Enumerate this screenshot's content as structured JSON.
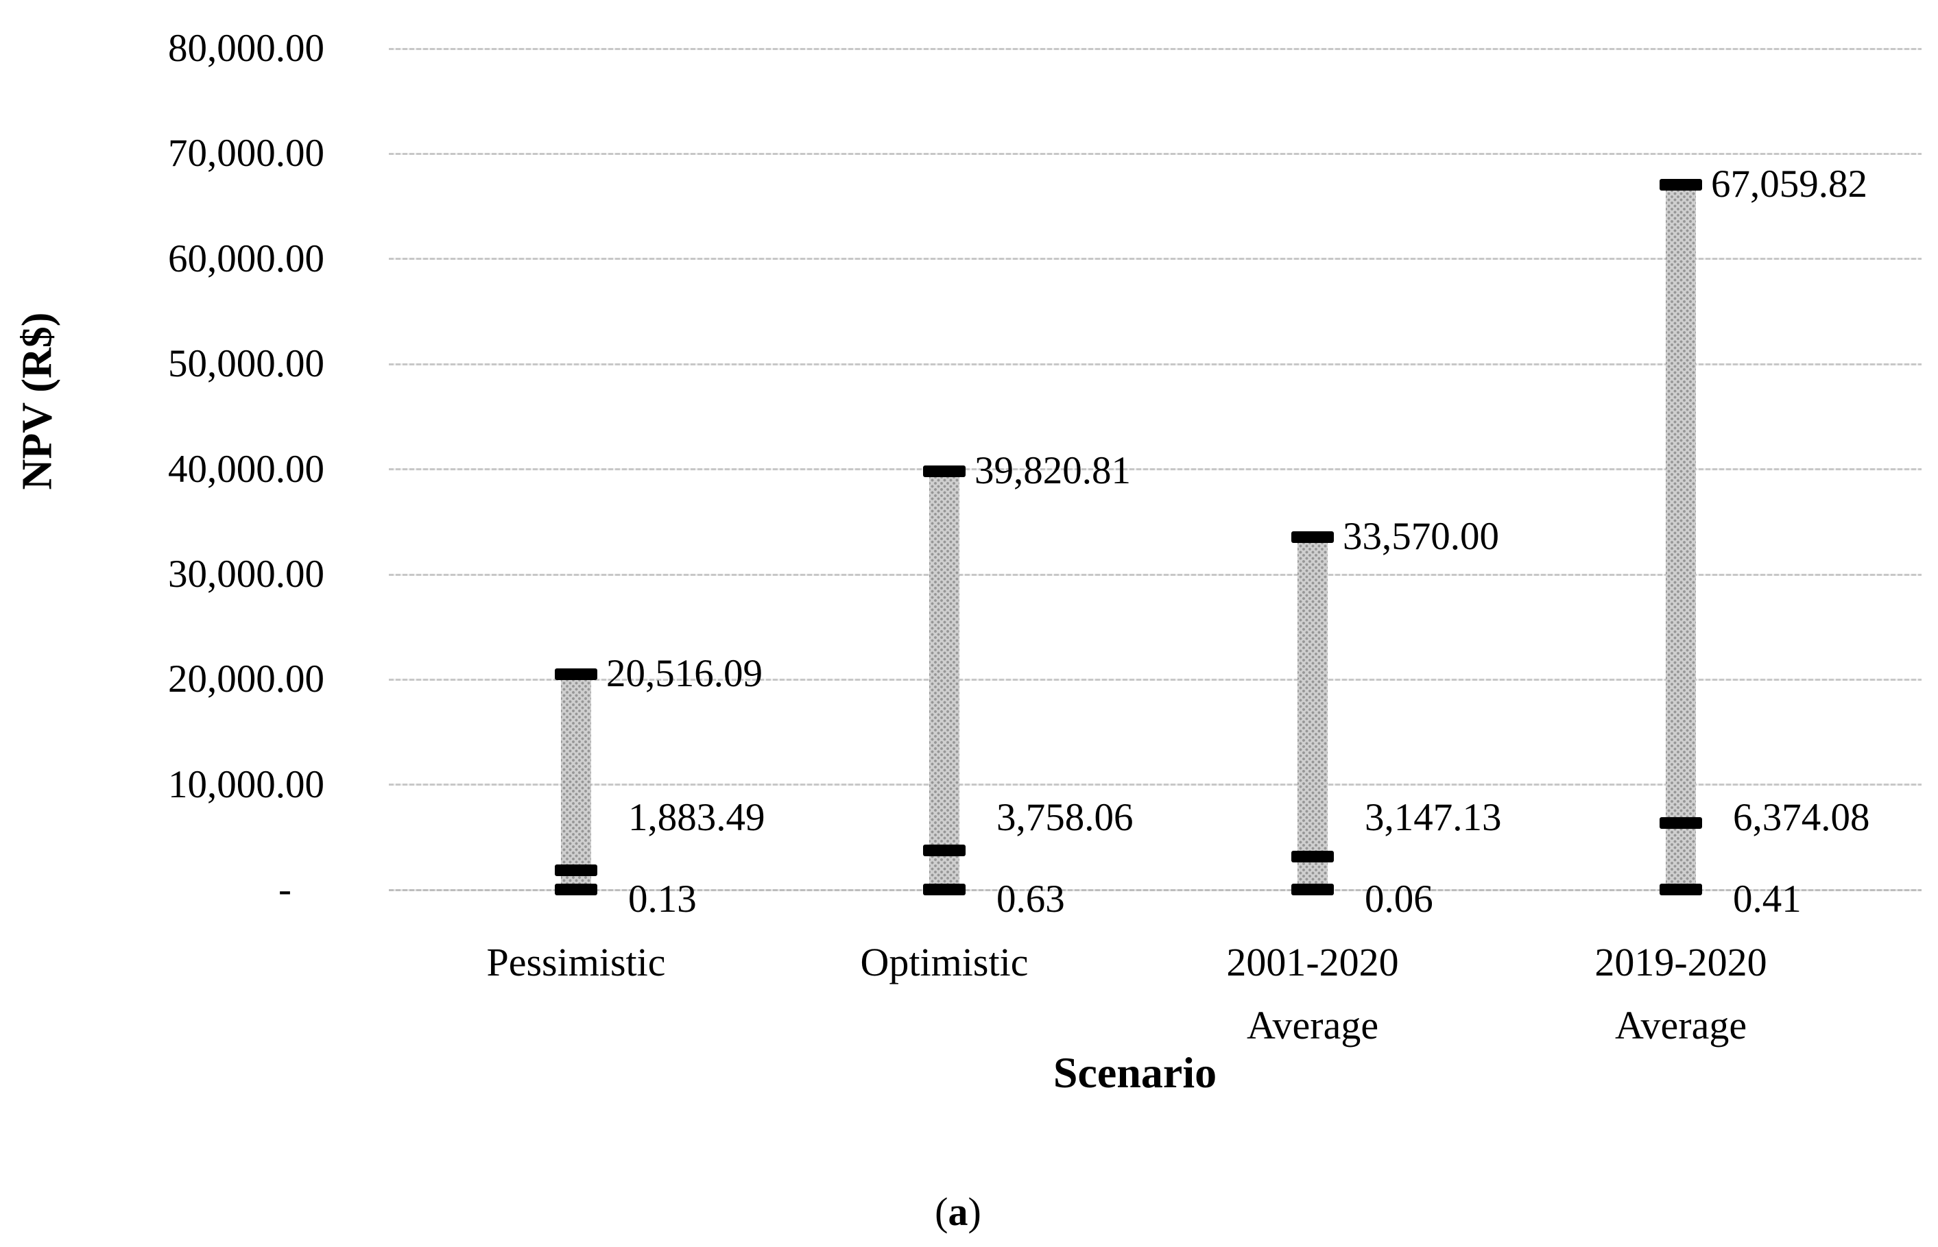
{
  "figure": {
    "y_axis_title": "NPV (R$)",
    "x_axis_title": "Scenario",
    "caption": {
      "open": "(",
      "letter": "a",
      "close": ")"
    }
  },
  "chart_data": {
    "type": "hilo-bar",
    "subtype": "stock high-low-close",
    "title": "",
    "xlabel": "Scenario",
    "ylabel": "NPV (R$)",
    "ylim": [
      0,
      80000
    ],
    "y_tick_interval": 10000,
    "grid": true,
    "legend": "none",
    "y_tick_labels": [
      "80,000.00",
      "70,000.00",
      "60,000.00",
      "50,000.00",
      "40,000.00",
      "30,000.00",
      "20,000.00",
      "10,000.00",
      "-"
    ],
    "categories": [
      "Pessimistic",
      "Optimistic",
      "2001-2020 Average",
      "2019-2020 Average"
    ],
    "category_label_lines": [
      [
        "Pessimistic"
      ],
      [
        "Optimistic"
      ],
      [
        "2001-2020",
        "Average"
      ],
      [
        "2019-2020",
        "Average"
      ]
    ],
    "series": [
      {
        "name": "high",
        "values": [
          20516.09,
          39820.81,
          33570.0,
          67059.82
        ]
      },
      {
        "name": "close",
        "values": [
          1883.49,
          3758.06,
          3147.13,
          6374.08
        ]
      },
      {
        "name": "low",
        "values": [
          0.13,
          0.63,
          0.06,
          0.41
        ]
      }
    ],
    "data_labels": [
      {
        "high": "20,516.09",
        "close": "1,883.49",
        "low": "0.13"
      },
      {
        "high": "39,820.81",
        "close": "3,758.06",
        "low": "0.63"
      },
      {
        "high": "33,570.00",
        "close": "3,147.13",
        "low": "0.06"
      },
      {
        "high": "67,059.82",
        "close": "6,374.08",
        "low": "0.41"
      }
    ],
    "colors": {
      "bar_fill": "#cfcfcf",
      "bar_pattern_dot": "#969696",
      "marker": "#000000",
      "gridline": "#c7c7c7",
      "text": "#000000",
      "background": "#ffffff"
    },
    "caption": "(a)"
  }
}
